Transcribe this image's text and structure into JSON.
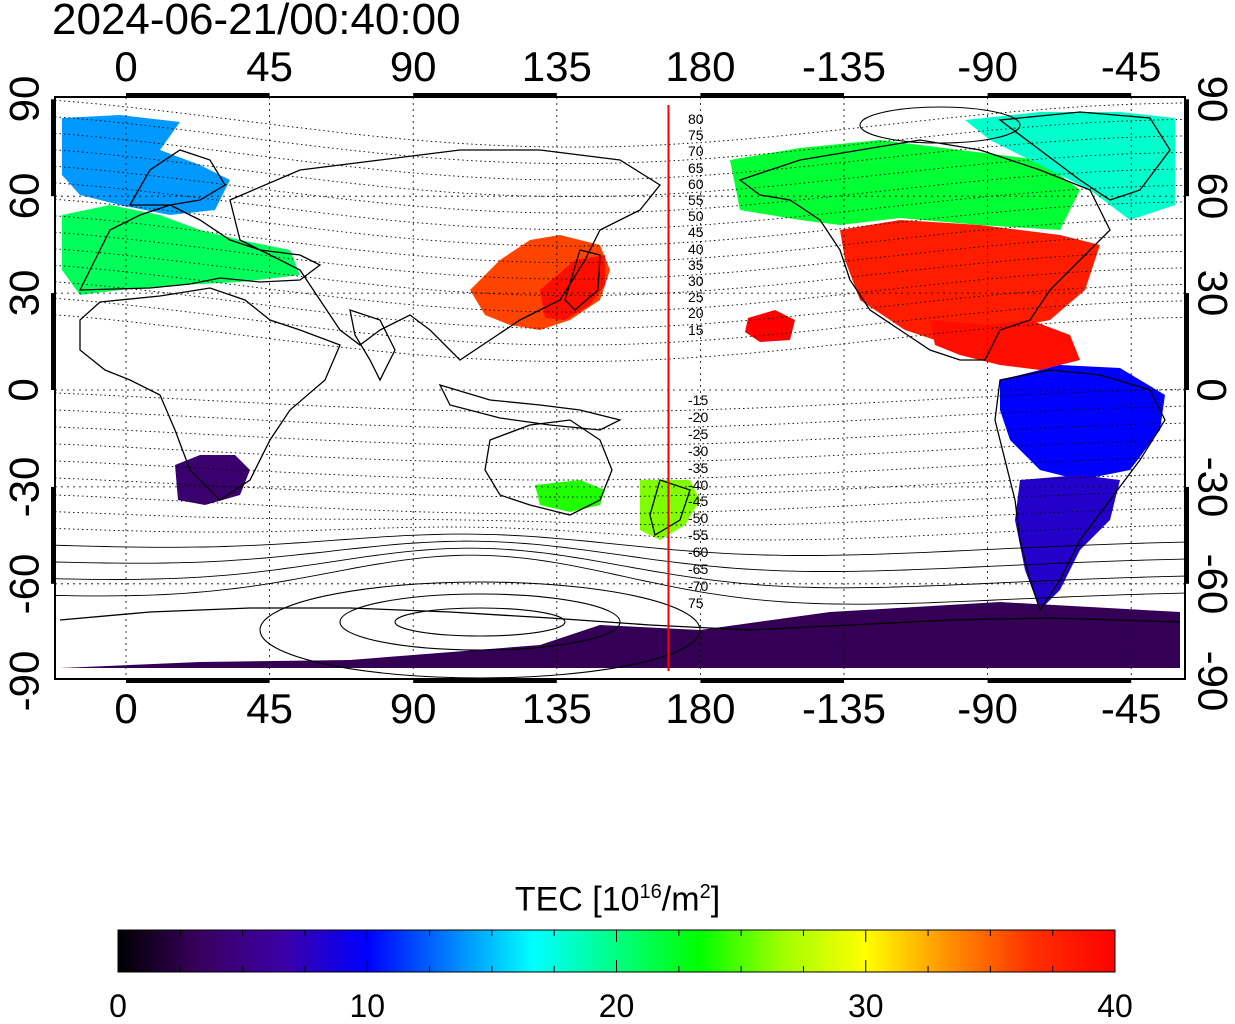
{
  "title": "2024-06-21/00:40:00",
  "colors": {
    "frame": "#000000",
    "coastline": "#000000",
    "grid": "#000000",
    "terminator_line": "#ff0000",
    "background": "#ffffff"
  },
  "map": {
    "projection": "equirectangular",
    "center_longitude": 120,
    "top_axis_ticks": [
      "0",
      "45",
      "90",
      "135",
      "180",
      "-135",
      "-90",
      "-45"
    ],
    "bottom_axis_ticks": [
      "0",
      "45",
      "90",
      "135",
      "180",
      "-135",
      "-90",
      "-45"
    ],
    "left_axis_ticks": [
      "90",
      "60",
      "30",
      "0",
      "-30",
      "-60",
      "-90"
    ],
    "right_axis_ticks": [
      "90",
      "60",
      "30",
      "0",
      "-30",
      "-60",
      "-90"
    ],
    "contour_labels_north": [
      "80",
      "75",
      "70",
      "65",
      "60",
      "55",
      "50",
      "45",
      "40",
      "35",
      "30",
      "25",
      "20",
      "15"
    ],
    "contour_labels_south": [
      "-15",
      "-20",
      "-25",
      "-30",
      "-35",
      "-40",
      "-45",
      "-50",
      "-55",
      "-60",
      "-65",
      "-70",
      "75"
    ],
    "red_line_longitude": 170
  },
  "colorbar": {
    "label_main": "TEC  [10",
    "label_exp": "16",
    "label_unit": "/m",
    "label_exp2": "2",
    "label_end": "]",
    "min": 0,
    "max": 40,
    "tick_labels": [
      "0",
      "10",
      "20",
      "30",
      "40"
    ],
    "stops": [
      "#000000",
      "#3a0060",
      "#3c00a8",
      "#0000ff",
      "#0080ff",
      "#00ffff",
      "#00ff80",
      "#00ff00",
      "#a0ff00",
      "#ffff00",
      "#ff9000",
      "#ff3000",
      "#ff0000"
    ]
  },
  "tec_regions": [
    {
      "name": "north-america",
      "value": 38
    },
    {
      "name": "canada-north",
      "value": 22
    },
    {
      "name": "greenland-arctic",
      "value": 18
    },
    {
      "name": "central-america",
      "value": 39
    },
    {
      "name": "south-america-north",
      "value": 10
    },
    {
      "name": "south-america-south",
      "value": 8
    },
    {
      "name": "europe",
      "value": 21
    },
    {
      "name": "scandinavia",
      "value": 14
    },
    {
      "name": "east-asia",
      "value": 36
    },
    {
      "name": "japan",
      "value": 39
    },
    {
      "name": "southern-africa",
      "value": 4
    },
    {
      "name": "antarctica",
      "value": 3
    },
    {
      "name": "new-zealand",
      "value": 26
    },
    {
      "name": "australia",
      "value": 24
    },
    {
      "name": "hawaii",
      "value": 40
    }
  ]
}
